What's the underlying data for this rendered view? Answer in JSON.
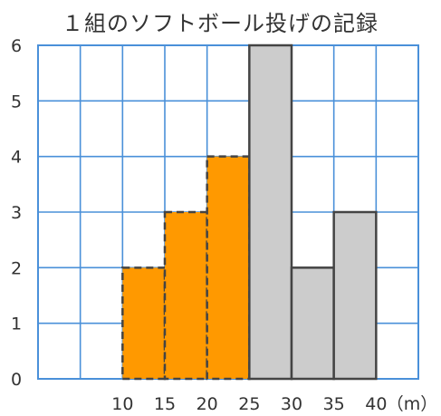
{
  "chart_data": {
    "type": "bar",
    "title": "１組のソフトボール投げの記録",
    "unit_label": "（m）",
    "x_ticks": [
      "10",
      "15",
      "20",
      "25",
      "30",
      "35",
      "40"
    ],
    "y_ticks": [
      "0",
      "1",
      "2",
      "3",
      "4",
      "5",
      "6"
    ],
    "xlim": [
      0,
      45
    ],
    "ylim": [
      0,
      6
    ],
    "grid": true,
    "bins": [
      {
        "range": [
          10,
          15
        ],
        "value": 2,
        "highlighted": true
      },
      {
        "range": [
          15,
          20
        ],
        "value": 3,
        "highlighted": true
      },
      {
        "range": [
          20,
          25
        ],
        "value": 4,
        "highlighted": true
      },
      {
        "range": [
          25,
          30
        ],
        "value": 6,
        "highlighted": false
      },
      {
        "range": [
          30,
          35
        ],
        "value": 2,
        "highlighted": false
      },
      {
        "range": [
          35,
          40
        ],
        "value": 3,
        "highlighted": false
      }
    ],
    "colors": {
      "highlighted_fill": "#FF9900",
      "normal_fill": "#CCCCCC",
      "grid": "#4A90D9",
      "bar_stroke": "#444444"
    }
  }
}
